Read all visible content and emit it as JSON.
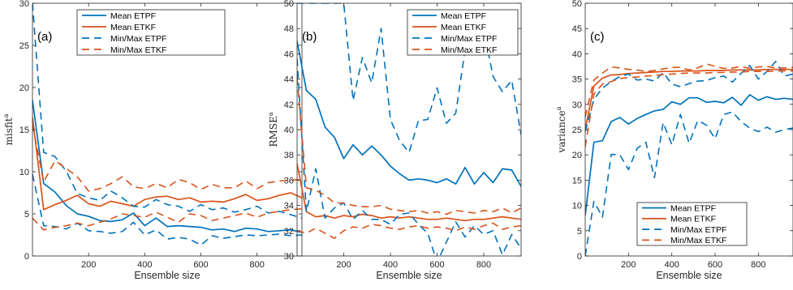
{
  "colors": {
    "etpf": "#0072bd",
    "etkf": "#d95319",
    "axis": "#262626"
  },
  "chart_data": [
    {
      "type": "line",
      "panel_label": "(a)",
      "xlabel": "Ensemble size",
      "ylabel": "misfit",
      "ylabel_superscript": "a",
      "xlim": [
        0,
        960
      ],
      "ylim": [
        0,
        30
      ],
      "xticks": [
        200,
        400,
        600,
        800
      ],
      "xtick_labels": [
        "200",
        "400",
        "600",
        "800"
      ],
      "yticks": [
        0,
        5,
        10,
        15,
        20,
        25,
        30
      ],
      "ytick_labels": [
        "0",
        "5",
        "10",
        "15",
        "20",
        "25",
        "30"
      ],
      "legend_position": "top-right",
      "legend": [
        "Mean ETPF",
        "Mean ETKF",
        "Min/Max ETPF",
        "Min/Max ETKF"
      ],
      "x": [
        0,
        40,
        80,
        120,
        160,
        200,
        240,
        280,
        320,
        360,
        400,
        440,
        480,
        520,
        560,
        600,
        640,
        680,
        720,
        760,
        800,
        840,
        880,
        920,
        960
      ],
      "series": [
        {
          "name": "Mean ETPF",
          "color": "etpf",
          "dash": "solid",
          "values": [
            18.5,
            8.6,
            7.6,
            6.0,
            5.0,
            4.7,
            4.2,
            4.1,
            4.3,
            5.1,
            3.6,
            4.5,
            3.5,
            3.6,
            3.5,
            3.4,
            3.1,
            3.2,
            2.9,
            3.3,
            3.2,
            2.9,
            3.0,
            3.1,
            2.8
          ]
        },
        {
          "name": "Mean ETKF",
          "color": "etkf",
          "dash": "solid",
          "values": [
            16.5,
            5.5,
            6.1,
            6.6,
            7.2,
            6.2,
            5.9,
            6.5,
            6.2,
            5.9,
            6.7,
            7.0,
            7.1,
            6.7,
            6.9,
            6.4,
            6.5,
            6.4,
            6.8,
            7.3,
            6.6,
            6.8,
            7.2,
            7.5,
            6.9
          ]
        },
        {
          "name": "Min/Max ETPF",
          "color": "etpf",
          "dash": "dashed",
          "values": [
            30.0,
            12.3,
            11.8,
            10.1,
            7.4,
            6.9,
            6.6,
            7.7,
            6.9,
            5.9,
            5.8,
            6.7,
            6.1,
            5.9,
            5.3,
            6.1,
            5.5,
            5.7,
            5.2,
            5.5,
            5.9,
            5.1,
            5.3,
            4.9,
            4.5
          ]
        },
        {
          "name": "Min/Max ETPF",
          "color": "etpf",
          "dash": "dashed",
          "values": [
            9.7,
            3.6,
            3.5,
            3.2,
            3.9,
            3.0,
            2.9,
            2.7,
            2.9,
            4.0,
            2.5,
            3.1,
            2.0,
            2.2,
            2.0,
            1.3,
            2.4,
            2.1,
            2.3,
            2.5,
            2.4,
            2.5,
            2.6,
            2.4,
            2.5
          ]
        },
        {
          "name": "Min/Max ETKF",
          "color": "etkf",
          "dash": "dashed",
          "values": [
            15.6,
            8.8,
            11.3,
            10.4,
            9.4,
            7.7,
            8.0,
            8.6,
            9.4,
            8.2,
            8.0,
            8.6,
            8.1,
            9.1,
            8.7,
            7.9,
            8.5,
            8.1,
            8.1,
            8.9,
            8.0,
            8.7,
            8.9,
            9.0,
            9.1
          ]
        },
        {
          "name": "Min/Max ETKF",
          "color": "etkf",
          "dash": "dashed",
          "values": [
            4.5,
            3.1,
            3.4,
            3.6,
            3.9,
            3.6,
            4.0,
            4.4,
            5.0,
            4.8,
            4.6,
            5.2,
            4.6,
            4.0,
            5.0,
            4.8,
            4.2,
            4.5,
            4.8,
            5.1,
            4.6,
            5.1,
            5.3,
            5.5,
            5.6
          ]
        }
      ]
    },
    {
      "type": "line",
      "panel_label": "(b)",
      "xlabel": "Ensemble size",
      "ylabel": "RMSE",
      "ylabel_superscript": "a",
      "xlim": [
        0,
        960
      ],
      "ylim": [
        30,
        50
      ],
      "xticks": [
        200,
        400,
        600,
        800
      ],
      "xtick_labels": [
        "200",
        "400",
        "600",
        "800"
      ],
      "yticks": [
        30,
        32,
        34,
        36,
        38,
        40,
        42,
        44,
        46,
        48,
        50
      ],
      "ytick_labels": [
        "30",
        "32",
        "34",
        "36",
        "38",
        "40",
        "42",
        "44",
        "46",
        "48",
        "50"
      ],
      "legend_position": "top-right",
      "legend": [
        "Mean ETPF",
        "Mean ETKF",
        "Min/Max ETPF",
        "Min/Max ETKF"
      ],
      "x": [
        0,
        40,
        80,
        120,
        160,
        200,
        240,
        280,
        320,
        360,
        400,
        440,
        480,
        520,
        560,
        600,
        640,
        680,
        720,
        760,
        800,
        840,
        880,
        920,
        960
      ],
      "series": [
        {
          "name": "Mean ETPF",
          "color": "etpf",
          "dash": "solid",
          "values": [
            47.0,
            43.1,
            42.4,
            40.2,
            39.4,
            37.7,
            38.8,
            38.0,
            38.7,
            38.0,
            37.1,
            36.5,
            36.0,
            36.1,
            36.0,
            35.8,
            36.1,
            35.7,
            37.0,
            35.7,
            36.6,
            35.8,
            36.9,
            36.8,
            35.5
          ]
        },
        {
          "name": "Mean ETKF",
          "color": "etkf",
          "dash": "solid",
          "values": [
            37.3,
            33.5,
            33.1,
            33.2,
            33.0,
            33.2,
            33.1,
            33.3,
            33.2,
            33.0,
            33.1,
            33.0,
            33.1,
            33.0,
            32.9,
            32.9,
            33.0,
            32.9,
            32.8,
            32.9,
            32.9,
            33.0,
            33.1,
            33.0,
            32.9
          ]
        },
        {
          "name": "Min/Max ETPF",
          "color": "etpf",
          "dash": "dashed",
          "values": [
            50.0,
            50.0,
            50.0,
            50.0,
            50.0,
            50.0,
            42.3,
            45.7,
            43.7,
            48.0,
            40.8,
            39.1,
            38.2,
            40.7,
            40.8,
            43.3,
            40.5,
            41.3,
            46.3,
            46.2,
            47.9,
            44.2,
            43.0,
            43.9,
            39.6
          ]
        },
        {
          "name": "Min/Max ETPF",
          "color": "etpf",
          "dash": "dashed",
          "values": [
            45.6,
            33.5,
            36.9,
            33.0,
            33.8,
            34.2,
            32.9,
            33.6,
            32.9,
            32.9,
            32.5,
            33.3,
            33.4,
            32.5,
            31.8,
            29.5,
            31.1,
            32.7,
            31.5,
            32.4,
            31.7,
            32.0,
            30.1,
            31.7,
            30.6
          ]
        },
        {
          "name": "Min/Max ETKF",
          "color": "etkf",
          "dash": "dashed",
          "values": [
            44.1,
            35.4,
            35.2,
            34.8,
            34.2,
            34.2,
            34.0,
            33.9,
            33.9,
            34.0,
            33.7,
            33.6,
            33.5,
            33.6,
            33.4,
            33.5,
            33.3,
            33.6,
            33.5,
            33.4,
            33.6,
            33.5,
            33.8,
            33.4,
            33.8
          ]
        },
        {
          "name": "Min/Max ETKF",
          "color": "etkf",
          "dash": "dashed",
          "values": [
            32.0,
            31.8,
            32.2,
            31.8,
            31.4,
            32.0,
            32.3,
            32.2,
            32.5,
            32.4,
            32.2,
            32.1,
            32.3,
            32.4,
            32.2,
            32.3,
            32.2,
            32.0,
            32.3,
            32.1,
            32.4,
            32.6,
            32.1,
            32.3,
            32.4
          ]
        }
      ]
    },
    {
      "type": "line",
      "panel_label": "(c)",
      "xlabel": "Ensemble size",
      "ylabel": "variance",
      "ylabel_superscript": "a",
      "xlim": [
        0,
        960
      ],
      "ylim": [
        0,
        50
      ],
      "xticks": [
        200,
        400,
        600,
        800
      ],
      "xtick_labels": [
        "200",
        "400",
        "600",
        "800"
      ],
      "yticks": [
        0,
        5,
        10,
        15,
        20,
        25,
        30,
        35,
        40,
        45,
        50
      ],
      "ytick_labels": [
        "0",
        "5",
        "10",
        "15",
        "20",
        "25",
        "30",
        "35",
        "40",
        "45",
        "50"
      ],
      "legend_position": "bottom-right",
      "legend": [
        "Mean ETPF",
        "Mean ETKF",
        "Min/Max ETPF",
        "Min/Max ETKF"
      ],
      "x": [
        0,
        40,
        80,
        120,
        160,
        200,
        240,
        280,
        320,
        360,
        400,
        440,
        480,
        520,
        560,
        600,
        640,
        680,
        720,
        760,
        800,
        840,
        880,
        920,
        960
      ],
      "series": [
        {
          "name": "Mean ETPF",
          "color": "etpf",
          "dash": "solid",
          "values": [
            8.0,
            22.5,
            22.8,
            26.6,
            27.4,
            26.1,
            27.2,
            28.0,
            28.7,
            29.0,
            30.5,
            30.0,
            31.3,
            31.3,
            30.4,
            30.6,
            30.3,
            31.4,
            29.8,
            31.9,
            30.8,
            31.5,
            31.0,
            31.2,
            31.0
          ]
        },
        {
          "name": "Mean ETKF",
          "color": "etkf",
          "dash": "solid",
          "values": [
            25.0,
            33.6,
            35.2,
            35.8,
            35.9,
            36.1,
            36.2,
            36.3,
            36.4,
            36.5,
            36.5,
            36.6,
            36.6,
            36.6,
            36.7,
            36.7,
            36.7,
            36.8,
            36.8,
            36.8,
            36.8,
            36.9,
            36.9,
            36.9,
            36.9
          ]
        },
        {
          "name": "Min/Max ETPF",
          "color": "etpf",
          "dash": "dashed",
          "values": [
            24.6,
            31.0,
            33.2,
            34.5,
            35.5,
            36.0,
            34.8,
            35.0,
            34.6,
            36.3,
            34.0,
            33.5,
            34.1,
            34.6,
            34.7,
            35.3,
            35.6,
            34.4,
            36.1,
            37.7,
            35.0,
            36.5,
            38.5,
            35.6,
            36.0
          ]
        },
        {
          "name": "Min/Max ETPF",
          "color": "etpf",
          "dash": "dashed",
          "values": [
            0.0,
            10.8,
            7.7,
            20.1,
            20.0,
            17.1,
            21.3,
            22.5,
            15.5,
            26.4,
            22.0,
            28.0,
            22.3,
            26.8,
            25.9,
            23.2,
            28.0,
            28.5,
            26.6,
            25.3,
            24.6,
            25.5,
            24.5,
            25.0,
            25.3
          ]
        },
        {
          "name": "Min/Max ETKF",
          "color": "etkf",
          "dash": "dashed",
          "values": [
            27.5,
            34.8,
            36.2,
            37.4,
            37.2,
            36.9,
            36.8,
            36.5,
            36.7,
            37.0,
            37.3,
            37.3,
            36.8,
            37.2,
            38.0,
            37.5,
            37.1,
            37.2,
            37.5,
            37.1,
            37.4,
            37.5,
            37.2,
            37.2,
            37.3
          ]
        },
        {
          "name": "Min/Max ETKF",
          "color": "etkf",
          "dash": "dashed",
          "values": [
            21.6,
            32.0,
            34.0,
            34.5,
            35.1,
            35.3,
            35.4,
            35.6,
            35.7,
            35.9,
            36.0,
            36.1,
            36.2,
            36.2,
            36.2,
            36.3,
            36.3,
            36.4,
            36.4,
            36.5,
            36.5,
            36.5,
            36.6,
            36.6,
            36.6
          ]
        }
      ]
    }
  ]
}
